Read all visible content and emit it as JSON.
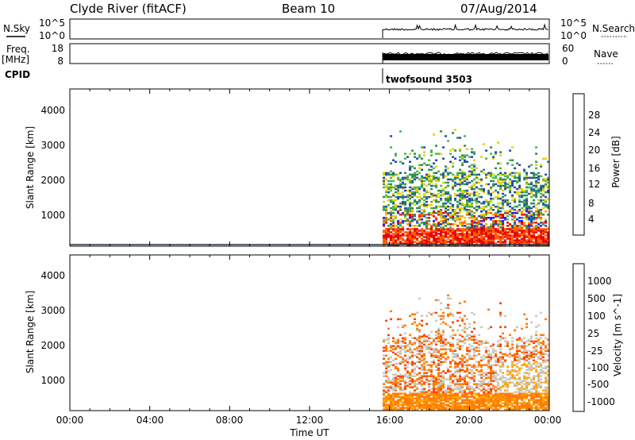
{
  "header": {
    "radar": "Clyde River (fitACF)",
    "beam": "Beam 10",
    "date": "07/Aug/2014"
  },
  "noise_panel": {
    "left_label": "N.Sky",
    "left_ticks": [
      "10^5",
      "10^0"
    ],
    "right_label": "N.Search",
    "right_ticks": [
      "10^5",
      "10^0"
    ]
  },
  "freq_panel": {
    "left_label_1": "Freq.",
    "left_label_2": "[MHz]",
    "left_ticks": [
      "18",
      "8"
    ],
    "right_label": "Nave",
    "right_ticks": [
      "60",
      "0"
    ]
  },
  "cpid": {
    "label": "CPID",
    "program": "twofsound 3503"
  },
  "x_axis": {
    "label": "Time UT",
    "ticks": [
      "00:00",
      "04:00",
      "08:00",
      "12:00",
      "16:00",
      "20:00",
      "00:00"
    ]
  },
  "chart_data": [
    {
      "type": "heatmap",
      "name": "power",
      "xlabel": "Time UT",
      "ylabel": "Slant Range [km]",
      "y_ticks": [
        "1000",
        "2000",
        "3000",
        "4000"
      ],
      "xlim_hours": [
        0,
        24
      ],
      "ylim_km": [
        180,
        4600
      ],
      "data_start_hour": 15.5,
      "colorbar": {
        "label": "Power [dB]",
        "ticks": [
          "4",
          "8",
          "12",
          "16",
          "20",
          "24",
          "28"
        ],
        "colors": [
          "#1a1aff",
          "#234aa8",
          "#2e8b57",
          "#48b748",
          "#e8d000",
          "#ff9a00",
          "#ff5a00",
          "#e80000"
        ]
      }
    },
    {
      "type": "heatmap",
      "name": "velocity",
      "xlabel": "Time UT",
      "ylabel": "Slant Range [km]",
      "y_ticks": [
        "1000",
        "2000",
        "3000",
        "4000"
      ],
      "xlim_hours": [
        0,
        24
      ],
      "ylim_km": [
        180,
        4600
      ],
      "data_start_hour": 15.5,
      "colorbar": {
        "label": "Velocity [m s^-1]",
        "ticks": [
          "1000",
          "500",
          "100",
          "25",
          "-25",
          "-100",
          "-500",
          "-1000"
        ],
        "colors": [
          "#1f3fbf",
          "#2c6fa8",
          "#3a9a4a",
          "#7cd33a",
          "#c8c8c0",
          "#ffa500",
          "#ff7a00",
          "#ff4000",
          "#e00000"
        ]
      }
    }
  ]
}
